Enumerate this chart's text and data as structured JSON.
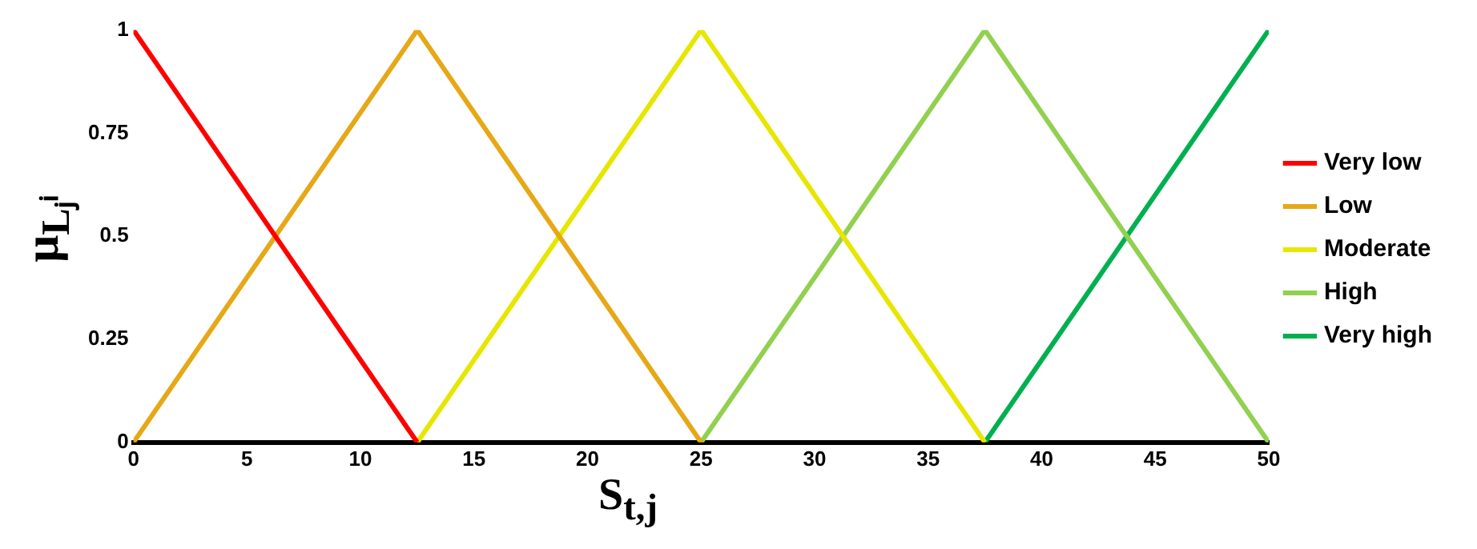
{
  "chart_data": {
    "type": "line",
    "xlabel": "S$_{t,j}$",
    "ylabel": "μ$_{Lⱼⁱ}$",
    "series": [
      {
        "name": "Very low",
        "color": "#ff0000",
        "x": [
          0,
          12.5
        ],
        "values": [
          1,
          0
        ]
      },
      {
        "name": "Low",
        "color": "#e6a817",
        "x": [
          0,
          12.5,
          25
        ],
        "values": [
          0,
          1,
          0
        ]
      },
      {
        "name": "Moderate",
        "color": "#e6e600",
        "x": [
          12.5,
          25,
          37.5
        ],
        "values": [
          0,
          1,
          0
        ]
      },
      {
        "name": "High",
        "color": "#92d050",
        "x": [
          25,
          37.5,
          50
        ],
        "values": [
          0,
          1,
          0
        ]
      },
      {
        "name": "Very high",
        "color": "#00b050",
        "x": [
          37.5,
          50
        ],
        "values": [
          0,
          1
        ]
      }
    ],
    "xlim": [
      0,
      50
    ],
    "xticks": [
      0,
      5,
      10,
      15,
      20,
      25,
      30,
      35,
      40,
      45,
      50
    ],
    "ylim": [
      0,
      1
    ],
    "yticks": [
      0,
      0.25,
      0.5,
      0.75,
      1
    ],
    "grid": false,
    "legend": "right",
    "marker": "none",
    "line_style": "solid"
  }
}
